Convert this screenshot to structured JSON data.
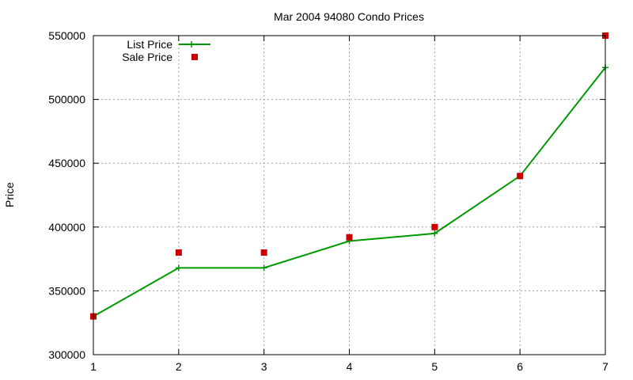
{
  "chart_data": {
    "type": "line",
    "title": "Mar 2004 94080 Condo Prices",
    "xlabel": "",
    "ylabel": "Price",
    "x": [
      1,
      2,
      3,
      4,
      5,
      6,
      7
    ],
    "xlim": [
      1,
      7
    ],
    "ylim": [
      300000,
      550000
    ],
    "yticks": [
      300000,
      350000,
      400000,
      450000,
      500000,
      550000
    ],
    "grid": true,
    "legend_position": "top-left",
    "series": [
      {
        "name": "List Price",
        "style": "line+cross",
        "color": "#009900",
        "values": [
          330000,
          368000,
          368000,
          389000,
          395000,
          440000,
          525000
        ]
      },
      {
        "name": "Sale Price",
        "style": "square",
        "color": "#cc0000",
        "values": [
          330000,
          380000,
          380000,
          392000,
          400000,
          440000,
          550000
        ]
      }
    ]
  }
}
